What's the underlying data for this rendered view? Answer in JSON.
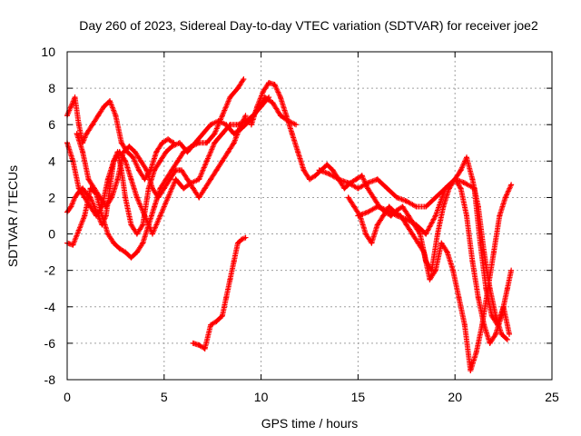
{
  "chart_data": {
    "type": "scatter",
    "title": "Day 260 of 2023, Sidereal Day-to-day VTEC variation (SDTVAR) for receiver joe2",
    "xlabel": "GPS time / hours",
    "ylabel": "SDTVAR / TECUs",
    "xlim": [
      0,
      25
    ],
    "ylim": [
      -8,
      10
    ],
    "xticks": [
      0,
      5,
      10,
      15,
      20,
      25
    ],
    "yticks": [
      -8,
      -6,
      -4,
      -2,
      0,
      2,
      4,
      6,
      8,
      10
    ],
    "grid": true,
    "marker": "+",
    "color": "#ff0000",
    "series": [
      {
        "name": "s1",
        "x": [
          0.0,
          0.2,
          0.4,
          0.6,
          0.8,
          1.0,
          1.3,
          1.6,
          1.9,
          2.2,
          2.5,
          2.8,
          3.1,
          3.4,
          3.7,
          4.0,
          4.3,
          4.6,
          4.9,
          5.2,
          5.5
        ],
        "y": [
          6.5,
          7.0,
          7.5,
          6.0,
          5.0,
          5.5,
          6.0,
          6.5,
          7.0,
          7.3,
          6.5,
          5.0,
          4.5,
          4.2,
          3.5,
          3.0,
          3.5,
          4.5,
          5.0,
          5.2,
          5.0
        ]
      },
      {
        "name": "s2",
        "x": [
          0.0,
          0.3,
          0.6,
          0.9,
          1.2,
          1.5,
          1.8,
          2.1,
          2.4,
          2.7,
          3.0,
          3.3,
          3.6,
          3.9,
          4.2,
          4.5,
          4.8,
          5.1,
          5.4,
          5.7,
          6.0,
          6.4,
          6.8,
          7.2,
          7.6,
          8.0,
          8.4,
          8.8,
          9.1
        ],
        "y": [
          -0.5,
          -0.6,
          0.2,
          1.0,
          2.5,
          2.2,
          1.0,
          0.0,
          -0.5,
          -0.8,
          -1.0,
          -1.3,
          -1.0,
          -0.5,
          0.5,
          1.5,
          2.5,
          3.0,
          3.5,
          4.0,
          4.5,
          4.8,
          5.0,
          5.0,
          5.5,
          6.5,
          7.5,
          8.0,
          8.5
        ]
      },
      {
        "name": "s3",
        "x": [
          0.0,
          0.3,
          0.6,
          0.9,
          1.2,
          1.5,
          1.8,
          2.1,
          2.4,
          2.7,
          3.0,
          3.3,
          3.6,
          4.0,
          4.4,
          4.8,
          5.2,
          5.6,
          6.0,
          6.4,
          6.8,
          7.2,
          7.6,
          8.0,
          8.4,
          8.8,
          9.2,
          9.6,
          10.0,
          10.4
        ],
        "y": [
          5.0,
          4.0,
          2.5,
          2.0,
          1.5,
          1.0,
          1.5,
          3.0,
          4.0,
          4.5,
          4.0,
          3.0,
          2.0,
          1.0,
          0.0,
          1.0,
          2.0,
          3.0,
          2.5,
          2.8,
          3.0,
          4.0,
          5.0,
          5.5,
          6.0,
          6.0,
          6.2,
          6.5,
          7.0,
          7.5
        ]
      },
      {
        "name": "s4",
        "x": [
          0.0,
          0.2,
          0.4,
          0.6,
          0.8,
          1.0,
          1.2,
          1.4,
          1.6,
          1.8,
          2.0,
          2.2,
          2.4,
          2.6,
          2.8,
          3.0,
          3.3,
          3.6,
          3.9,
          4.2,
          4.5,
          4.8,
          5.1,
          5.4,
          5.8,
          6.2,
          6.6,
          7.0,
          7.4,
          7.8,
          8.2,
          8.6,
          9.0,
          9.4,
          9.8,
          10.2,
          10.6,
          11.0,
          11.4,
          11.8
        ],
        "y": [
          1.2,
          1.5,
          2.0,
          2.3,
          2.5,
          2.2,
          2.0,
          1.5,
          1.0,
          0.5,
          1.0,
          2.5,
          4.0,
          4.5,
          3.5,
          2.0,
          0.5,
          0.0,
          0.5,
          2.5,
          3.5,
          4.0,
          4.5,
          4.8,
          5.0,
          4.5,
          5.0,
          5.5,
          6.0,
          6.2,
          6.0,
          5.5,
          5.8,
          6.2,
          6.8,
          7.5,
          7.2,
          6.5,
          6.2,
          6.0
        ]
      },
      {
        "name": "s5",
        "x": [
          0.5,
          0.8,
          1.1,
          1.4,
          1.7,
          2.0,
          2.3,
          2.6,
          2.9,
          3.2,
          3.5,
          3.8,
          4.1,
          4.4,
          4.7,
          5.0,
          5.3,
          5.6,
          5.9,
          6.2,
          6.5,
          6.8,
          7.1,
          7.4,
          7.7,
          8.0,
          8.3,
          8.6,
          8.9,
          9.2
        ],
        "y": [
          5.5,
          4.5,
          3.0,
          2.5,
          2.0,
          1.5,
          2.0,
          3.0,
          4.5,
          4.8,
          4.5,
          4.0,
          3.5,
          2.5,
          2.0,
          2.5,
          3.0,
          3.5,
          3.5,
          3.0,
          2.5,
          2.0,
          2.5,
          3.0,
          3.5,
          4.0,
          4.5,
          5.0,
          5.8,
          6.5
        ]
      },
      {
        "name": "s6",
        "x": [
          6.5,
          6.8,
          7.1,
          7.4,
          7.7,
          8.0,
          8.2,
          8.4,
          8.6,
          8.8,
          9.0,
          9.2
        ],
        "y": [
          -6.0,
          -6.1,
          -6.3,
          -5.0,
          -4.8,
          -4.5,
          -3.5,
          -2.5,
          -1.5,
          -0.5,
          -0.3,
          -0.2
        ]
      },
      {
        "name": "s7",
        "x": [
          9.5,
          9.8,
          10.1,
          10.4,
          10.7,
          11.0,
          11.3,
          11.6,
          11.9,
          12.2,
          12.5,
          12.8,
          13.1,
          13.4,
          13.7,
          14.0,
          14.3,
          14.6,
          14.9,
          15.2,
          15.5,
          15.8,
          16.1,
          16.4,
          16.7,
          17.0,
          17.3,
          17.6,
          17.9,
          18.2,
          18.5,
          18.8,
          19.1,
          19.4,
          19.7,
          20.0,
          20.3,
          20.6,
          20.9,
          21.2,
          21.5,
          21.8,
          22.1,
          22.4,
          22.7,
          22.9
        ],
        "y": [
          6.0,
          7.0,
          7.8,
          8.3,
          8.2,
          7.5,
          6.5,
          5.5,
          4.5,
          3.5,
          3.0,
          3.2,
          3.5,
          3.8,
          3.5,
          3.0,
          2.5,
          2.8,
          3.0,
          3.2,
          2.5,
          2.0,
          1.5,
          1.2,
          1.0,
          1.3,
          1.5,
          1.0,
          0.5,
          0.0,
          -1.5,
          -2.0,
          0.0,
          1.5,
          2.5,
          3.0,
          2.5,
          1.0,
          -1.5,
          -3.5,
          -5.0,
          -6.0,
          -5.5,
          -4.5,
          -3.0,
          -2.0
        ]
      },
      {
        "name": "s8",
        "x": [
          13.0,
          13.5,
          14.0,
          14.5,
          15.0,
          15.5,
          16.0,
          16.5,
          17.0,
          17.5,
          18.0,
          18.5,
          19.0,
          19.5,
          20.0,
          20.3,
          20.6,
          20.9,
          21.2,
          21.5,
          21.8,
          22.1,
          22.4,
          22.7
        ],
        "y": [
          3.5,
          3.3,
          3.0,
          2.8,
          2.5,
          2.8,
          3.0,
          2.5,
          2.0,
          1.8,
          1.5,
          1.5,
          2.0,
          2.5,
          3.0,
          3.5,
          4.2,
          3.0,
          1.5,
          -1.0,
          -3.0,
          -4.5,
          -5.5,
          -5.8
        ]
      },
      {
        "name": "s9",
        "x": [
          14.5,
          14.8,
          15.1,
          15.4,
          15.7,
          16.0,
          16.3,
          16.6,
          16.9,
          17.2,
          17.5,
          17.8,
          18.1,
          18.4,
          18.7,
          19.0,
          19.3,
          19.6,
          19.9,
          20.2,
          20.5,
          20.8,
          21.1,
          21.4,
          21.7,
          22.0,
          22.3,
          22.6,
          22.9
        ],
        "y": [
          2.0,
          1.5,
          1.0,
          0.0,
          -0.5,
          0.5,
          1.0,
          1.5,
          1.2,
          1.0,
          0.5,
          0.0,
          -0.5,
          -1.0,
          -2.5,
          -2.0,
          -0.5,
          -1.0,
          -2.0,
          -3.5,
          -5.0,
          -7.5,
          -6.5,
          -5.0,
          -3.0,
          -1.0,
          1.0,
          2.0,
          2.7
        ]
      },
      {
        "name": "s10",
        "x": [
          15.0,
          15.5,
          16.0,
          16.5,
          17.0,
          17.5,
          18.0,
          18.5,
          19.0,
          19.5,
          20.0,
          20.5,
          21.0,
          21.3,
          21.6,
          21.9,
          22.2,
          22.5,
          22.8
        ],
        "y": [
          1.0,
          1.2,
          1.5,
          1.3,
          1.0,
          0.8,
          0.5,
          0.0,
          1.0,
          2.5,
          3.0,
          2.8,
          2.5,
          -0.5,
          -3.0,
          -4.5,
          -5.0,
          -4.0,
          -5.5
        ]
      }
    ]
  }
}
